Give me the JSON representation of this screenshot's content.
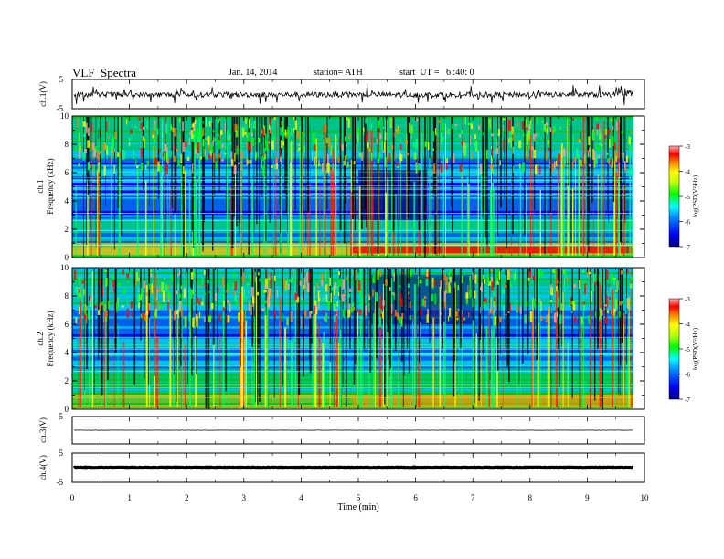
{
  "header": {
    "title": "VLF  Spectra",
    "date": "Jan. 14, 2014",
    "station": "station= ATH",
    "start": "start  UT =   6 :40: 0"
  },
  "chart_data": [
    {
      "type": "line",
      "ylabel": "ch.1(V)",
      "ylim": [
        -5,
        5
      ],
      "yticks": [
        "5",
        "-5"
      ],
      "note": "noisy broadband waveform centred near 0 V"
    },
    {
      "type": "heatmap",
      "channel_label": "ch.1",
      "ylabel": "Frequency  (kHz)",
      "ylim": [
        0,
        10
      ],
      "yticks": [
        "0",
        "2",
        "4",
        "6",
        "8",
        "10"
      ],
      "colorbar": {
        "label": "log(PSD(V²/Hz)",
        "ticks": [
          "-3",
          "-4",
          "-5",
          "-6",
          "-7"
        ],
        "range": [
          -7,
          -3
        ]
      }
    },
    {
      "type": "heatmap",
      "channel_label": "ch.2",
      "ylabel": "Frequency  (kHz)",
      "ylim": [
        0,
        10
      ],
      "yticks": [
        "0",
        "2",
        "4",
        "6",
        "8",
        "10"
      ],
      "colorbar": {
        "label": "log(PSD(V²/Hz)",
        "ticks": [
          "-3",
          "-4",
          "-5",
          "-6",
          "-7"
        ],
        "range": [
          -7,
          -3
        ]
      }
    },
    {
      "type": "line",
      "ylabel": "ch.3(V)",
      "ylim": [
        -5,
        5
      ],
      "yticks": [
        "5"
      ],
      "note": "flat line near 0 V"
    },
    {
      "type": "line",
      "ylabel": "ch.4(V)",
      "ylim": [
        -5,
        5
      ],
      "yticks": [
        "5",
        "-5"
      ],
      "note": "thick flat band near 0 V"
    }
  ],
  "x_axis": {
    "xlabel": "Time  (min)",
    "xlim": [
      0,
      10
    ],
    "ticks": [
      "0",
      "1",
      "2",
      "3",
      "4",
      "5",
      "6",
      "7",
      "8",
      "9",
      "10"
    ],
    "data_end_min": 9.8
  },
  "colors": {
    "colormap": [
      "#000080",
      "#0000ff",
      "#0080ff",
      "#00ffff",
      "#00ff80",
      "#00ff00",
      "#80ff00",
      "#ffff00",
      "#ff8000",
      "#ff0000",
      "#ffa0a0"
    ]
  }
}
